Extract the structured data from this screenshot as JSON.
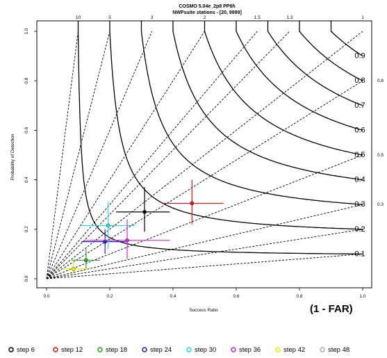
{
  "chart_data": {
    "type": "scatter",
    "title": "COSMO 5.04e_2p8 PP6h",
    "subtitle": "NWPsuite stations - [20, 9999]",
    "xlabel": "Success Ratio",
    "ylabel": "Probability of Detection",
    "far_note": "(1 - FAR)",
    "xlim": [
      0,
      1
    ],
    "ylim": [
      0,
      1
    ],
    "x_ticks": [
      "0.0",
      "0.2",
      "0.4",
      "0.6",
      "0.8",
      "1.0"
    ],
    "y_ticks": [
      "0.0",
      "0.2",
      "0.4",
      "0.6",
      "0.8",
      "1.0"
    ],
    "grid": false,
    "legend_position": "bottom",
    "bias_lines": [
      {
        "bias": 10,
        "label": "10"
      },
      {
        "bias": 5,
        "label": "5"
      },
      {
        "bias": 3,
        "label": "3"
      },
      {
        "bias": 2,
        "label": "2"
      },
      {
        "bias": 1.5,
        "label": "1.5"
      },
      {
        "bias": 1.3,
        "label": "1.3"
      },
      {
        "bias": 1,
        "label": "1"
      },
      {
        "bias": 0.8,
        "label": "0.8"
      },
      {
        "bias": 0.5,
        "label": "0.5"
      },
      {
        "bias": 0.3,
        "label": "0.3"
      },
      {
        "bias": 0.2,
        "label": ""
      },
      {
        "bias": 0.1,
        "label": ""
      }
    ],
    "csi_contours": [
      {
        "csi": 0.1,
        "label": "0.1"
      },
      {
        "csi": 0.2,
        "label": "0.2"
      },
      {
        "csi": 0.3,
        "label": "0.3"
      },
      {
        "csi": 0.4,
        "label": "0.4"
      },
      {
        "csi": 0.5,
        "label": "0.5"
      },
      {
        "csi": 0.6,
        "label": "0.6"
      },
      {
        "csi": 0.7,
        "label": "0.7"
      },
      {
        "csi": 0.8,
        "label": "0.8"
      },
      {
        "csi": 0.9,
        "label": "0.9"
      }
    ],
    "series": [
      {
        "name": "step 6",
        "color": "#000000",
        "x": 0.31,
        "y": 0.27,
        "x_err": [
          0.22,
          0.39
        ],
        "y_err": [
          0.19,
          0.37
        ]
      },
      {
        "name": "step 12",
        "color": "#dd1111",
        "x": 0.46,
        "y": 0.305,
        "x_err": [
          0.37,
          0.56
        ],
        "y_err": [
          0.22,
          0.4
        ]
      },
      {
        "name": "step 18",
        "color": "#22aa22",
        "x": 0.125,
        "y": 0.075,
        "x_err": [
          0.08,
          0.17
        ],
        "y_err": [
          0.04,
          0.12
        ]
      },
      {
        "name": "step 24",
        "color": "#2222cc",
        "x": 0.185,
        "y": 0.15,
        "x_err": [
          0.11,
          0.25
        ],
        "y_err": [
          0.1,
          0.2
        ]
      },
      {
        "name": "step 30",
        "color": "#22dddd",
        "x": 0.195,
        "y": 0.215,
        "x_err": [
          0.11,
          0.28
        ],
        "y_err": [
          0.12,
          0.31
        ]
      },
      {
        "name": "step 36",
        "color": "#dd22dd",
        "x": 0.255,
        "y": 0.155,
        "x_err": [
          0.12,
          0.39
        ],
        "y_err": [
          0.08,
          0.24
        ]
      },
      {
        "name": "step 42",
        "color": "#eeee00",
        "x": 0.085,
        "y": 0.04,
        "x_err": [
          0.05,
          0.13
        ],
        "y_err": [
          0.02,
          0.07
        ]
      },
      {
        "name": "step 48",
        "color": "#aaaaaa",
        "x": null,
        "y": null,
        "x_err": null,
        "y_err": null
      }
    ]
  }
}
